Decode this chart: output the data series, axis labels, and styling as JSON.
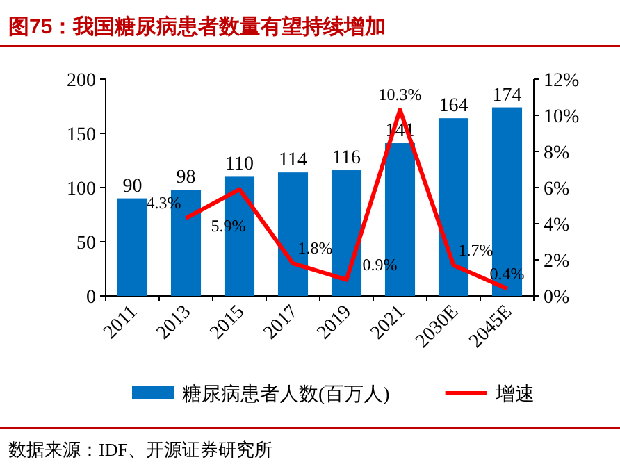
{
  "chart_data": {
    "type": "bar",
    "title": "图75：我国糖尿病患者数量有望持续增加",
    "categories": [
      "2011",
      "2013",
      "2015",
      "2017",
      "2019",
      "2021",
      "2030E",
      "2045E"
    ],
    "series": [
      {
        "name": "糖尿病患者人数(百万人)",
        "color": "#0070c0",
        "values": [
          90,
          98,
          110,
          114,
          116,
          141,
          164,
          174
        ],
        "value_labels": [
          "90",
          "98",
          "110",
          "114",
          "116",
          "141",
          "164",
          "174"
        ]
      },
      {
        "name": "增速",
        "type": "line",
        "axis": "y2",
        "color": "#ff0000",
        "values": [
          null,
          4.3,
          5.9,
          1.8,
          0.9,
          10.3,
          1.7,
          0.4
        ],
        "value_labels": [
          null,
          "4.3%",
          "5.9%",
          "1.8%",
          "0.9%",
          "10.3%",
          "1.7%",
          "0.4%"
        ]
      }
    ],
    "ylim": [
      0,
      200
    ],
    "yticks": [
      0,
      50,
      100,
      150,
      200
    ],
    "y2lim": [
      0,
      12
    ],
    "y2ticks": [
      {
        "value": 0,
        "label": "0%"
      },
      {
        "value": 2,
        "label": "2%"
      },
      {
        "value": 4,
        "label": "4%"
      },
      {
        "value": 6,
        "label": "6%"
      },
      {
        "value": 8,
        "label": "8%"
      },
      {
        "value": 10,
        "label": "10%"
      },
      {
        "value": 12,
        "label": "12%"
      }
    ],
    "grid": false,
    "legend": "bottom",
    "annotations": [
      "数据来源：IDF、开源证券研究所"
    ]
  }
}
